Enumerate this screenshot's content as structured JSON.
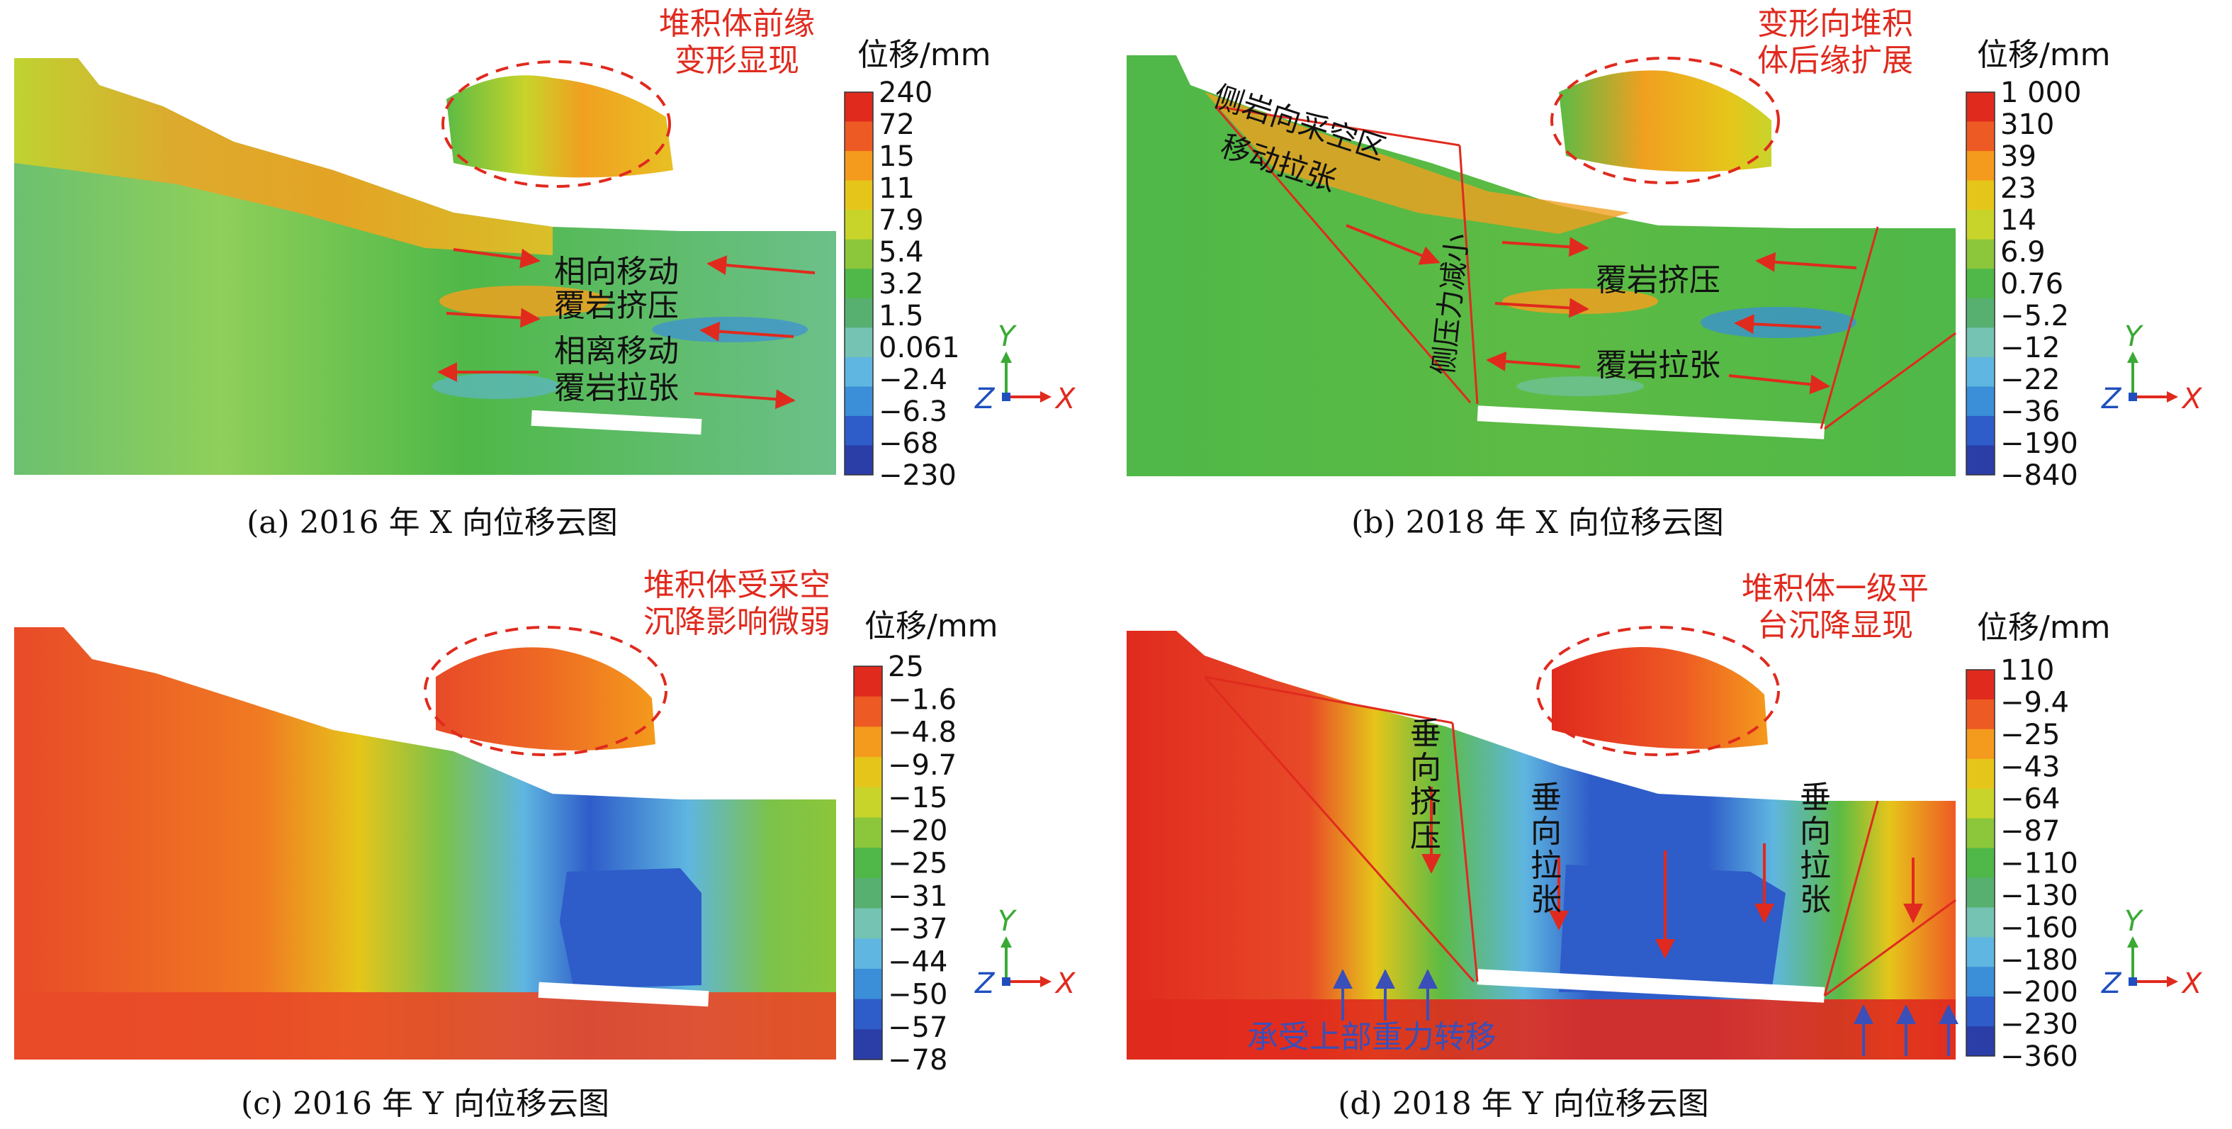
{
  "panels": [
    {
      "id": "a",
      "caption": "(a) 2016 年 X 向位移云图",
      "legend_title": "位移/mm",
      "legend_values": [
        "240",
        "72",
        "15",
        "11",
        "7.9",
        "5.4",
        "3.2",
        "1.5",
        "0.061",
        "−2.4",
        "−6.3",
        "−68",
        "−230"
      ],
      "annotation_title": [
        "堆积体前缘",
        "变形显现"
      ],
      "labels": [
        "相向移动",
        "覆岩挤压",
        "相离移动",
        "覆岩拉张"
      ],
      "axis": {
        "y": "Y",
        "z": "Z",
        "x": "X"
      }
    },
    {
      "id": "b",
      "caption": "(b) 2018 年  X 向位移云图",
      "legend_title": "位移/mm",
      "legend_values": [
        "1 000",
        "310",
        "39",
        "23",
        "14",
        "6.9",
        "0.76",
        "−5.2",
        "−12",
        "−22",
        "−36",
        "−190",
        "−840"
      ],
      "annotation_title": [
        "变形向堆积",
        "体后缘扩展"
      ],
      "labels": [
        "侧岩向采空区",
        "移动拉张",
        "侧压力减小",
        "覆岩挤压",
        "覆岩拉张"
      ],
      "axis": {
        "y": "Y",
        "z": "Z",
        "x": "X"
      }
    },
    {
      "id": "c",
      "caption": "(c) 2016 年  Y 向位移云图",
      "legend_title": "位移/mm",
      "legend_values": [
        "25",
        "−1.6",
        "−4.8",
        "−9.7",
        "−15",
        "−20",
        "−25",
        "−31",
        "−37",
        "−44",
        "−50",
        "−57",
        "−78"
      ],
      "annotation_title": [
        "堆积体受采空",
        "沉降影响微弱"
      ],
      "labels": [],
      "axis": {
        "y": "Y",
        "z": "Z",
        "x": "X"
      }
    },
    {
      "id": "d",
      "caption": "(d) 2018 年 Y 向位移云图",
      "legend_title": "位移/mm",
      "legend_values": [
        "110",
        "−9.4",
        "−25",
        "−43",
        "−64",
        "−87",
        "−110",
        "−130",
        "−160",
        "−180",
        "−200",
        "−230",
        "−360"
      ],
      "annotation_title": [
        "堆积体一级平",
        "台沉降显现"
      ],
      "labels": [
        "垂向挤压",
        "垂向拉张",
        "垂向拉张",
        "承受上部重力转移"
      ],
      "axis": {
        "y": "Y",
        "z": "Z",
        "x": "X"
      }
    }
  ],
  "colors": {
    "legend": [
      "#e02a1e",
      "#ee5a24",
      "#f49a1c",
      "#e6c51a",
      "#c8d42a",
      "#8cc63a",
      "#4fb848",
      "#57b070",
      "#74c3b3",
      "#5fb6e0",
      "#3a8fd8",
      "#2e5cc9",
      "#2b3ea8"
    ],
    "annotation": "#e02a1e",
    "arrow_red": "#e02a1e",
    "arrow_blue": "#3a4fb8",
    "axis_y": "#3aaa35",
    "axis_x": "#e02a1e",
    "axis_z": "#1f4fbf"
  }
}
